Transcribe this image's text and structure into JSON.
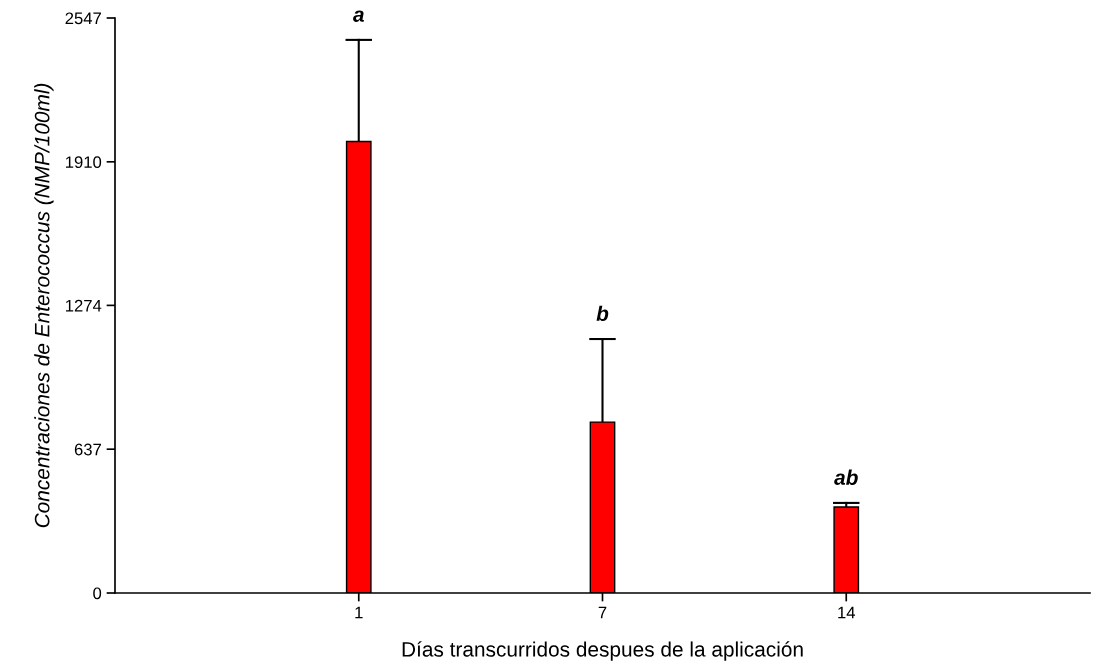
{
  "chart_data": {
    "type": "bar",
    "xlabel": "Días transcurridos despues de la aplicación",
    "ylabel": "Concentraciones de Enterococcus (NMP/100ml)",
    "categories": [
      "1",
      "7",
      "14"
    ],
    "values": [
      2000,
      757,
      381
    ],
    "color": "#ff0000",
    "errors": [
      [
        2000,
        2450
      ],
      [
        757,
        1125
      ],
      [
        381,
        399
      ]
    ],
    "ylim": [
      0,
      2547
    ],
    "yticks": [
      0,
      637,
      1274,
      1910,
      2547
    ],
    "grid": false,
    "annotations": [
      {
        "text": "a",
        "x": "1",
        "y": 2450
      },
      {
        "text": "b",
        "x": "7",
        "y": 1125
      },
      {
        "text": "ab",
        "x": "14",
        "y": 399
      }
    ]
  }
}
